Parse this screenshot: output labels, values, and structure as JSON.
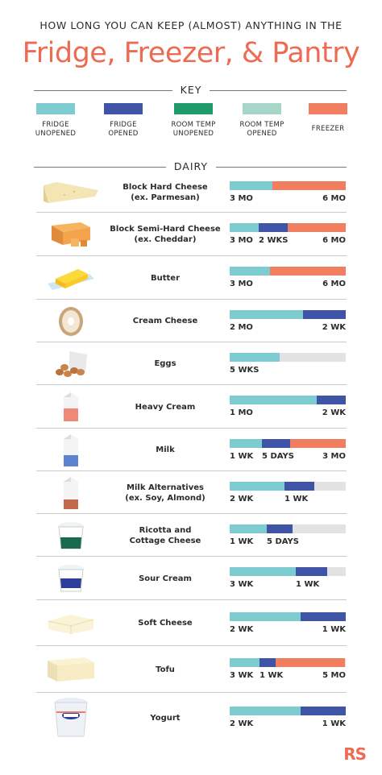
{
  "header": {
    "supertitle": "HOW LONG YOU CAN KEEP (ALMOST) ANYTHING IN THE",
    "title": "Fridge, Freezer, & Pantry"
  },
  "key": {
    "heading": "KEY",
    "items": [
      {
        "line1": "FRIDGE",
        "line2": "UNOPENED",
        "color": "#7cccd1"
      },
      {
        "line1": "FRIDGE",
        "line2": "OPENED",
        "color": "#3f54a6"
      },
      {
        "line1": "ROOM TEMP",
        "line2": "UNOPENED",
        "color": "#1f9a6a"
      },
      {
        "line1": "ROOM TEMP",
        "line2": "OPENED",
        "color": "#a6d6c7"
      },
      {
        "line1": "FREEZER",
        "line2": "",
        "color": "#f27e62"
      }
    ]
  },
  "section": {
    "heading": "DAIRY"
  },
  "items": [
    {
      "name1": "Block Hard Cheese",
      "name2": "(ex. Parmesan)",
      "icon": "parmesan-wedge-icon",
      "segments": [
        {
          "type": "fridge_unopened",
          "fraction": 0.37
        },
        {
          "type": "freezer",
          "fraction": 0.63
        }
      ],
      "labels": [
        "3 MO",
        "6 MO"
      ]
    },
    {
      "name1": "Block Semi-Hard Cheese",
      "name2": "(ex. Cheddar)",
      "icon": "cheddar-block-icon",
      "segments": [
        {
          "type": "fridge_unopened",
          "fraction": 0.25
        },
        {
          "type": "fridge_opened",
          "fraction": 0.25
        },
        {
          "type": "freezer",
          "fraction": 0.5
        }
      ],
      "labels": [
        "3 MO",
        "2 WKS",
        "6 MO"
      ]
    },
    {
      "name1": "Butter",
      "name2": "",
      "icon": "butter-stick-icon",
      "segments": [
        {
          "type": "fridge_unopened",
          "fraction": 0.35
        },
        {
          "type": "freezer",
          "fraction": 0.65
        }
      ],
      "labels": [
        "3 MO",
        "6 MO"
      ]
    },
    {
      "name1": "Cream Cheese",
      "name2": "",
      "icon": "cream-cheese-tub-icon",
      "segments": [
        {
          "type": "fridge_unopened",
          "fraction": 0.63
        },
        {
          "type": "fridge_opened",
          "fraction": 0.37
        }
      ],
      "labels": [
        "2 MO",
        "2 WK"
      ]
    },
    {
      "name1": "Eggs",
      "name2": "",
      "icon": "egg-carton-icon",
      "segments": [
        {
          "type": "fridge_unopened",
          "fraction": 0.43
        }
      ],
      "labels": [
        "5 WKS"
      ]
    },
    {
      "name1": "Heavy Cream",
      "name2": "",
      "icon": "cream-carton-icon",
      "segments": [
        {
          "type": "fridge_unopened",
          "fraction": 0.75
        },
        {
          "type": "fridge_opened",
          "fraction": 0.25
        }
      ],
      "labels": [
        "1 MO",
        "2 WK"
      ]
    },
    {
      "name1": "Milk",
      "name2": "",
      "icon": "milk-carton-icon",
      "segments": [
        {
          "type": "fridge_unopened",
          "fraction": 0.28
        },
        {
          "type": "fridge_opened",
          "fraction": 0.24
        },
        {
          "type": "freezer",
          "fraction": 0.48
        }
      ],
      "labels": [
        "1 WK",
        "5 DAYS",
        "3 MO"
      ]
    },
    {
      "name1": "Milk Alternatives",
      "name2": "(ex. Soy, Almond)",
      "icon": "almond-milk-carton-icon",
      "segments": [
        {
          "type": "fridge_unopened",
          "fraction": 0.47
        },
        {
          "type": "fridge_opened",
          "fraction": 0.26
        }
      ],
      "labels": [
        "2 WK",
        "1 WK"
      ]
    },
    {
      "name1": "Ricotta and",
      "name2": "Cottage Cheese",
      "icon": "ricotta-tub-icon",
      "segments": [
        {
          "type": "fridge_unopened",
          "fraction": 0.32
        },
        {
          "type": "fridge_opened",
          "fraction": 0.22
        }
      ],
      "labels": [
        "1 WK",
        "5 DAYS"
      ]
    },
    {
      "name1": "Sour Cream",
      "name2": "",
      "icon": "sour-cream-tub-icon",
      "segments": [
        {
          "type": "fridge_unopened",
          "fraction": 0.57
        },
        {
          "type": "fridge_opened",
          "fraction": 0.27
        }
      ],
      "labels": [
        "3 WK",
        "1 WK"
      ]
    },
    {
      "name1": "Soft Cheese",
      "name2": "",
      "icon": "brie-wedge-icon",
      "segments": [
        {
          "type": "fridge_unopened",
          "fraction": 0.61
        },
        {
          "type": "fridge_opened",
          "fraction": 0.39
        }
      ],
      "labels": [
        "2 WK",
        "1 WK"
      ]
    },
    {
      "name1": "Tofu",
      "name2": "",
      "icon": "tofu-block-icon",
      "segments": [
        {
          "type": "fridge_unopened",
          "fraction": 0.26
        },
        {
          "type": "fridge_opened",
          "fraction": 0.14
        },
        {
          "type": "freezer",
          "fraction": 0.6
        }
      ],
      "labels": [
        "3 WK",
        "1 WK",
        "5 MO"
      ]
    },
    {
      "name1": "Yogurt",
      "name2": "",
      "icon": "yogurt-cup-icon",
      "segments": [
        {
          "type": "fridge_unopened",
          "fraction": 0.61
        },
        {
          "type": "fridge_opened",
          "fraction": 0.39
        }
      ],
      "labels": [
        "2 WK",
        "1 WK"
      ]
    }
  ],
  "colors": {
    "fridge_unopened": "#7cccd1",
    "fridge_opened": "#3f54a6",
    "room_temp_unopened": "#1f9a6a",
    "room_temp_opened": "#a6d6c7",
    "freezer": "#f27e62",
    "bar_background": "#e2e2e2",
    "accent": "#ee6b53"
  },
  "logo": "RS"
}
